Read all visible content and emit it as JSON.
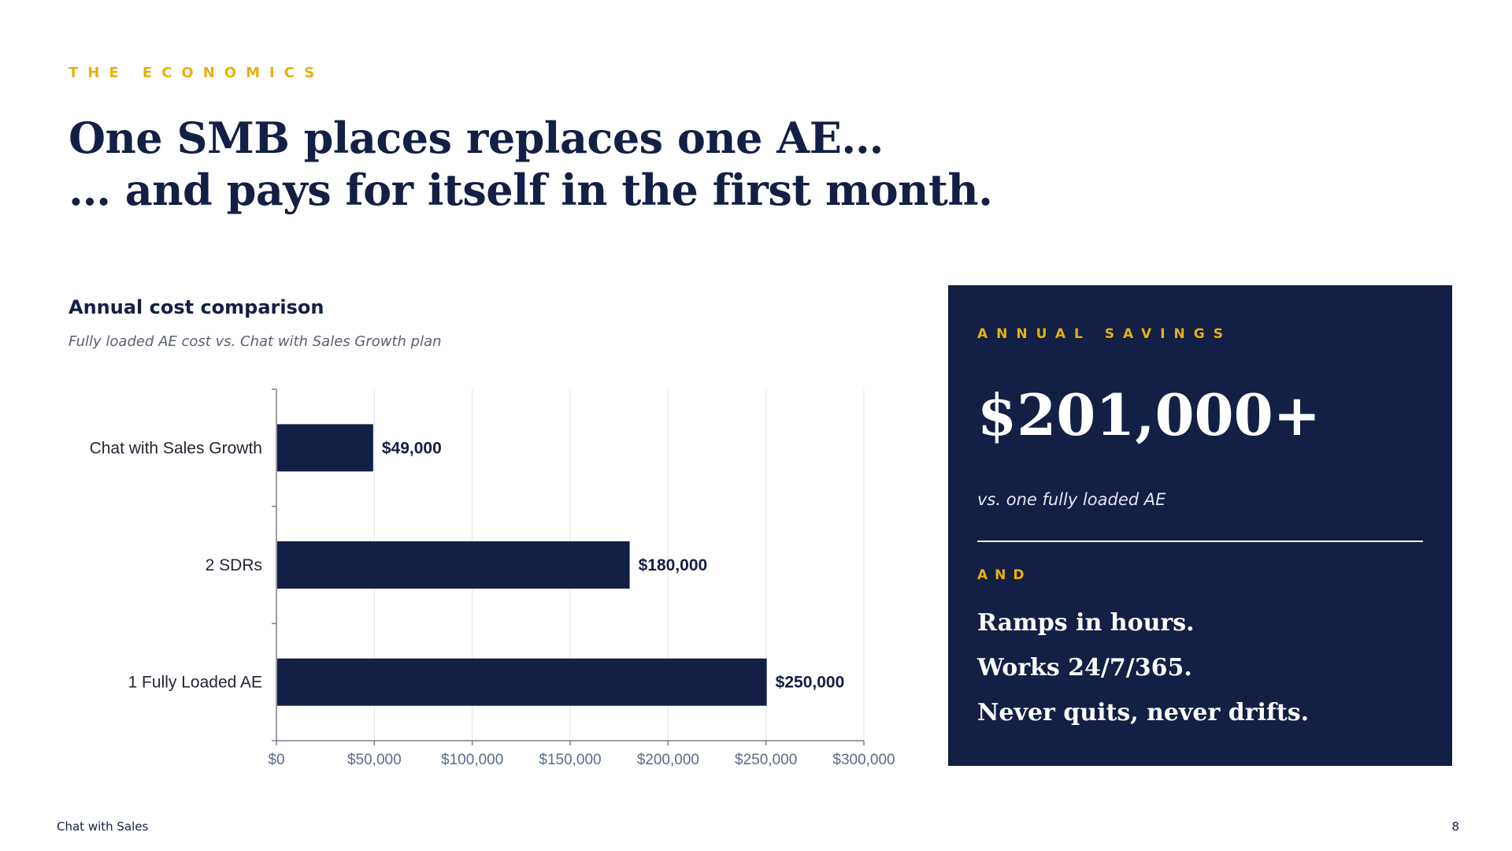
{
  "slide": {
    "eyebrow": "THE ECONOMICS",
    "headline_line1": "One SMB places replaces one AE…",
    "headline_line2": "… and pays for itself in the first month.",
    "footer_brand": "Chat with Sales",
    "page_number": "8"
  },
  "panel": {
    "eyebrow": "ANNUAL SAVINGS",
    "value": "$201,000+",
    "caption": "vs. one fully loaded AE",
    "and_label": "AND",
    "points": [
      "Ramps in hours.",
      "Works 24/7/365.",
      "Never quits, never drifts."
    ]
  },
  "chart_data": {
    "type": "bar",
    "orientation": "horizontal",
    "title": "Annual cost comparison",
    "subtitle": "Fully loaded AE cost vs. Chat with Sales Growth plan",
    "categories": [
      "Chat with Sales Growth",
      "2 SDRs",
      "1 Fully Loaded AE"
    ],
    "values": [
      49000,
      180000,
      250000
    ],
    "data_labels": [
      "$49,000",
      "$180,000",
      "$250,000"
    ],
    "xlim": [
      0,
      300000
    ],
    "x_ticks": [
      0,
      50000,
      100000,
      150000,
      200000,
      250000,
      300000
    ],
    "x_tick_labels": [
      "$0",
      "$50,000",
      "$100,000",
      "$150,000",
      "$200,000",
      "$250,000",
      "$300,000"
    ],
    "grid": "vertical",
    "legend": "none",
    "bar_color": "#131f45"
  }
}
